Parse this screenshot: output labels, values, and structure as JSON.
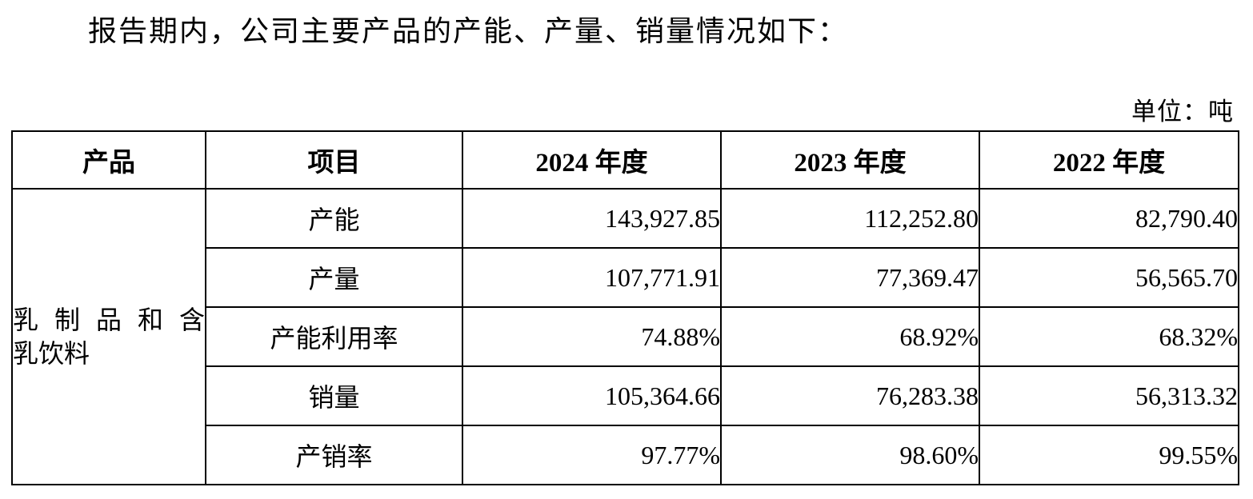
{
  "page": {
    "title": "报告期内，公司主要产品的产能、产量、销量情况如下：",
    "unit_label": "单位：吨"
  },
  "table": {
    "columns": [
      "产品",
      "项目",
      "2024 年度",
      "2023 年度",
      "2022 年度"
    ],
    "product": {
      "name": "乳制品和含乳饮料",
      "line1": "乳制品和含",
      "line2": "乳饮料"
    },
    "rows": [
      {
        "metric": "产能",
        "y2024": "143,927.85",
        "y2023": "112,252.80",
        "y2022": "82,790.40"
      },
      {
        "metric": "产量",
        "y2024": "107,771.91",
        "y2023": "77,369.47",
        "y2022": "56,565.70"
      },
      {
        "metric": "产能利用率",
        "y2024": "74.88%",
        "y2023": "68.92%",
        "y2022": "68.32%"
      },
      {
        "metric": "销量",
        "y2024": "105,364.66",
        "y2023": "76,283.38",
        "y2022": "56,313.32"
      },
      {
        "metric": "产销率",
        "y2024": "97.77%",
        "y2023": "98.60%",
        "y2022": "99.55%"
      }
    ]
  }
}
